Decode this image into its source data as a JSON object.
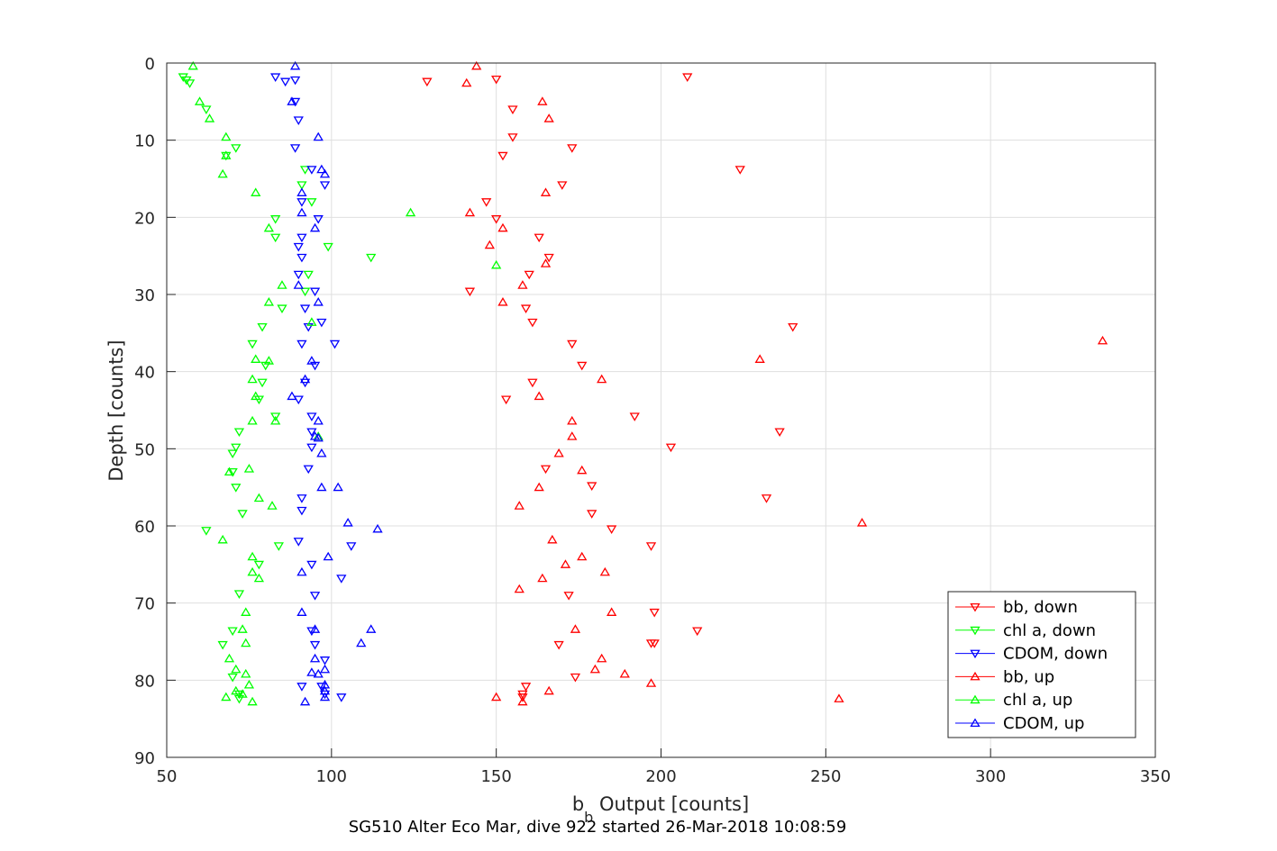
{
  "chart_data": {
    "type": "scatter",
    "xlabel_main": "b",
    "xlabel_sub": "b",
    "xlabel_rest": " Output [counts]",
    "ylabel": "Depth [counts]",
    "subtitle": "SG510 Alter Eco Mar, dive 922 started 26-Mar-2018 10:08:59",
    "xlim": [
      50,
      350
    ],
    "ylim": [
      0,
      90
    ],
    "y_reversed": true,
    "grid": true,
    "legend_position": "bottom-right",
    "xticks": [
      50,
      100,
      150,
      200,
      250,
      300,
      350
    ],
    "yticks": [
      0,
      10,
      20,
      30,
      40,
      50,
      60,
      70,
      80,
      90
    ],
    "series": [
      {
        "name": "bb, down",
        "color": "#ff0000",
        "marker": "triangle-down",
        "x": [
          208,
          129,
          150,
          155,
          155,
          173,
          152,
          224,
          170,
          147,
          150,
          163,
          166,
          160,
          142,
          159,
          161,
          240,
          173,
          176,
          161,
          153,
          192,
          236,
          203,
          165,
          179,
          232,
          179,
          185,
          197,
          172,
          169,
          197,
          211,
          198,
          198,
          174,
          159,
          158,
          158
        ],
        "y": [
          1.8,
          2.4,
          2.1,
          6.0,
          9.6,
          11.0,
          12.0,
          13.8,
          15.8,
          18.0,
          20.2,
          22.6,
          25.2,
          27.4,
          29.6,
          31.8,
          33.6,
          34.2,
          36.4,
          39.2,
          41.4,
          43.6,
          45.8,
          47.8,
          49.8,
          52.6,
          54.8,
          56.4,
          58.4,
          60.4,
          62.6,
          69.0,
          75.4,
          75.2,
          73.6,
          71.2,
          75.2,
          79.6,
          80.8,
          81.8,
          82.2
        ]
      },
      {
        "name": "chl a, down",
        "color": "#00ff00",
        "marker": "triangle-down",
        "x": [
          55,
          56,
          57,
          62,
          71,
          68,
          92,
          91,
          94,
          83,
          83,
          99,
          112,
          93,
          92,
          85,
          79,
          76,
          80,
          79,
          78,
          83,
          72,
          71,
          70,
          71,
          70,
          73,
          62,
          84,
          78,
          72,
          70,
          67,
          70,
          72,
          72
        ],
        "y": [
          1.8,
          2.2,
          2.6,
          6.0,
          11.0,
          12.0,
          13.8,
          15.8,
          18.0,
          20.2,
          22.6,
          23.8,
          25.2,
          27.4,
          29.6,
          31.8,
          34.2,
          36.4,
          39.2,
          41.4,
          43.6,
          45.8,
          47.8,
          49.8,
          50.6,
          55.0,
          53.0,
          58.4,
          60.6,
          62.6,
          65.0,
          68.8,
          73.6,
          75.4,
          79.6,
          81.8,
          82.4
        ]
      },
      {
        "name": "CDOM, down",
        "color": "#0000ff",
        "marker": "triangle-down",
        "x": [
          83,
          86,
          89,
          89,
          90,
          89,
          94,
          98,
          91,
          96,
          91,
          90,
          91,
          90,
          95,
          92,
          93,
          91,
          95,
          101,
          97,
          92,
          90,
          94,
          94,
          94,
          93,
          91,
          91,
          90,
          106,
          94,
          103,
          95,
          94,
          95,
          98,
          97,
          91,
          98,
          103
        ],
        "y": [
          1.8,
          2.4,
          2.2,
          5.0,
          7.4,
          11.0,
          13.8,
          15.8,
          18.0,
          20.2,
          22.6,
          23.8,
          25.2,
          27.4,
          29.6,
          31.8,
          34.2,
          36.4,
          39.2,
          36.4,
          33.6,
          41.4,
          43.6,
          45.8,
          47.8,
          49.8,
          52.6,
          56.4,
          58.0,
          62.0,
          62.6,
          65.0,
          66.8,
          69.0,
          73.6,
          75.4,
          77.4,
          80.8,
          80.8,
          81.8,
          82.2
        ]
      },
      {
        "name": "bb, up",
        "color": "#ff0000",
        "marker": "triangle-up",
        "x": [
          144,
          141,
          164,
          166,
          165,
          142,
          152,
          148,
          165,
          158,
          152,
          334,
          230,
          182,
          163,
          173,
          173,
          169,
          176,
          163,
          157,
          167,
          176,
          171,
          183,
          164,
          157,
          185,
          174,
          182,
          180,
          189,
          197,
          166,
          150,
          158,
          254,
          261
        ],
        "y": [
          0.4,
          2.6,
          5.0,
          7.2,
          16.8,
          19.4,
          21.4,
          23.6,
          26.0,
          28.8,
          31.0,
          36.0,
          38.4,
          41.0,
          43.2,
          46.4,
          48.4,
          50.6,
          52.8,
          55.0,
          57.4,
          61.8,
          64.0,
          65.0,
          66.0,
          66.8,
          68.2,
          71.2,
          73.4,
          77.2,
          78.6,
          79.2,
          80.4,
          81.4,
          82.2,
          82.8,
          82.4,
          59.6
        ]
      },
      {
        "name": "chl a, up",
        "color": "#00ff00",
        "marker": "triangle-up",
        "x": [
          58,
          60,
          63,
          68,
          68,
          67,
          77,
          124,
          81,
          150,
          85,
          81,
          94,
          77,
          81,
          76,
          77,
          83,
          76,
          96,
          75,
          69,
          78,
          82,
          67,
          76,
          78,
          76,
          74,
          73,
          74,
          69,
          71,
          74,
          75,
          71,
          73,
          68,
          76
        ],
        "y": [
          0.4,
          5.0,
          7.2,
          9.6,
          12.0,
          14.4,
          16.8,
          19.4,
          21.4,
          26.2,
          28.8,
          31.0,
          33.6,
          38.4,
          38.6,
          41.0,
          43.2,
          46.4,
          46.4,
          48.4,
          52.6,
          53.0,
          56.4,
          57.4,
          61.8,
          64.0,
          66.8,
          66.0,
          71.2,
          73.4,
          75.2,
          77.2,
          78.6,
          79.2,
          80.6,
          81.4,
          81.8,
          82.2,
          82.8
        ]
      },
      {
        "name": "CDOM, up",
        "color": "#0000ff",
        "marker": "triangle-up",
        "x": [
          89,
          88,
          96,
          97,
          98,
          91,
          91,
          95,
          90,
          96,
          88,
          94,
          92,
          96,
          95,
          96,
          97,
          97,
          102,
          105,
          114,
          99,
          91,
          91,
          95,
          112,
          109,
          95,
          94,
          98,
          96,
          98,
          98,
          98,
          92
        ],
        "y": [
          0.4,
          5.0,
          9.6,
          13.8,
          14.4,
          16.8,
          19.4,
          21.4,
          28.8,
          31.0,
          43.2,
          38.6,
          41.0,
          46.4,
          48.4,
          48.6,
          50.6,
          55.0,
          55.0,
          59.6,
          60.4,
          64.0,
          66.0,
          71.2,
          73.4,
          73.4,
          75.2,
          77.2,
          79.0,
          78.6,
          79.2,
          80.6,
          81.4,
          82.2,
          82.8
        ]
      }
    ]
  }
}
